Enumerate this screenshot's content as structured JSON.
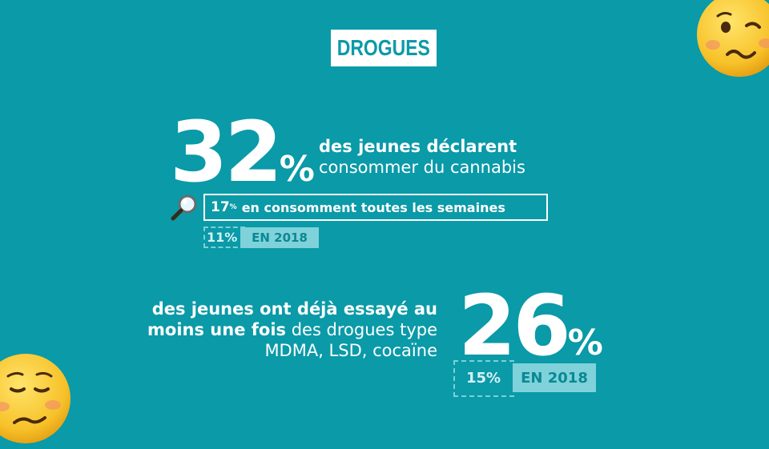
{
  "header": {
    "title": "DROGUES"
  },
  "colors": {
    "background": "#0a9aa8",
    "white": "#ffffff",
    "tag_bg": "#7fd2da",
    "tag_text": "#0a8893",
    "emoji": "#f7c22a"
  },
  "stat1": {
    "value": "32",
    "unit": "%",
    "line1": "des jeunes déclarent",
    "line2": "consommer du cannabis",
    "icon": "magnifier-icon",
    "sub_value": "17",
    "sub_unit": "%",
    "sub_text": "en consomment toutes les semaines",
    "prev_value": "11%",
    "prev_label": "EN 2018"
  },
  "stat2": {
    "value": "26",
    "unit": "%",
    "line1_bold": "des jeunes ont déjà essayé au",
    "line2_bold": "moins une fois",
    "line2_rest": " des drogues type",
    "line3": "MDMA, LSD, cocaïne",
    "prev_value": "15%",
    "prev_label": "EN 2018"
  },
  "decorations": {
    "top_right": "woozy-face-emoji",
    "bottom_left": "woozy-face-emoji"
  }
}
